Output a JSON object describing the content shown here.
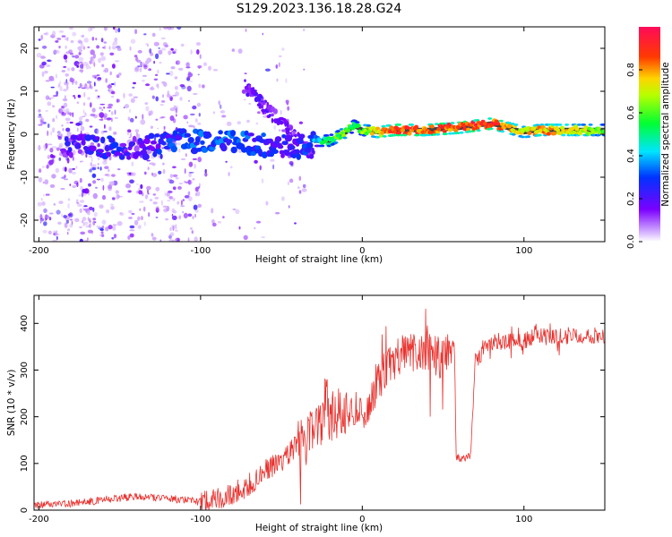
{
  "title": "S129.2023.136.18.28.G24",
  "colors": {
    "snr_line": "#e8322e",
    "frame": "#000000",
    "trace_dark": "#222222"
  },
  "chart_data": [
    {
      "type": "heatmap",
      "xlabel": "Height of straight line (km)",
      "ylabel": "Frequency (Hz)",
      "xlim": [
        -203,
        150
      ],
      "ylim": [
        -25,
        25
      ],
      "x_ticks": [
        -200,
        -100,
        0,
        100
      ],
      "y_ticks": [
        -20,
        -10,
        0,
        10,
        20
      ],
      "x_tick_labels": [
        "-200",
        "-100",
        "0",
        "100"
      ],
      "y_tick_labels": [
        "-20",
        "-10",
        "0",
        "10",
        "20"
      ],
      "colorbar": {
        "label": "Normalized spectral amplitude",
        "range": [
          0,
          1
        ],
        "ticks": [
          0.0,
          0.2,
          0.4,
          0.6,
          0.8
        ],
        "tick_labels": [
          "0.0",
          "0.2",
          "0.4",
          "0.6",
          "0.8"
        ],
        "colormap": "gist_rainbow_r (violet low, red high)"
      },
      "ridge": {
        "x": [
          -180,
          -160,
          -140,
          -120,
          -100,
          -80,
          -60,
          -40,
          -30,
          -20,
          -10,
          -5,
          0,
          10,
          20,
          40,
          60,
          80,
          90,
          100,
          110,
          130,
          150
        ],
        "freq_hz": [
          -2.5,
          -3.0,
          -3.5,
          -1.5,
          -1.5,
          -1.5,
          -2.5,
          -3.0,
          -1.5,
          -1.5,
          0.5,
          2.0,
          1.0,
          0.5,
          1.0,
          1.0,
          1.5,
          2.5,
          1.5,
          0.5,
          1.0,
          1.0,
          1.0
        ],
        "amplitude": [
          0.2,
          0.3,
          0.2,
          0.3,
          0.35,
          0.35,
          0.3,
          0.25,
          0.35,
          0.55,
          0.6,
          0.5,
          0.6,
          0.75,
          0.9,
          0.85,
          0.85,
          0.9,
          0.75,
          0.7,
          0.8,
          0.7,
          0.6
        ]
      }
    },
    {
      "type": "line",
      "xlabel": "Height of straight line (km)",
      "ylabel": "SNR (10 * v/v)",
      "xlim": [
        -203,
        150
      ],
      "ylim": [
        0,
        460
      ],
      "x_ticks": [
        -200,
        -100,
        0,
        100
      ],
      "y_ticks": [
        0,
        100,
        200,
        300,
        400
      ],
      "x_tick_labels": [
        "-200",
        "-100",
        "0",
        "100"
      ],
      "y_tick_labels": [
        "0",
        "100",
        "200",
        "300",
        "400"
      ],
      "series": [
        {
          "x": [
            -203,
            -180,
            -160,
            -140,
            -120,
            -100,
            -90,
            -80,
            -70,
            -60,
            -50,
            -40,
            -35,
            -30,
            -25,
            -22,
            -20,
            -15,
            -10,
            -5,
            0,
            5,
            10,
            15,
            20,
            30,
            40,
            50,
            57,
            58,
            62,
            67,
            70,
            72,
            75,
            80,
            90,
            100,
            105,
            108,
            110,
            120,
            130,
            140,
            150
          ],
          "y": [
            10,
            14,
            22,
            30,
            25,
            18,
            25,
            35,
            55,
            85,
            110,
            140,
            150,
            160,
            180,
            250,
            190,
            210,
            220,
            210,
            200,
            240,
            280,
            300,
            320,
            340,
            340,
            320,
            360,
            115,
            110,
            115,
            330,
            320,
            350,
            360,
            360,
            360,
            370,
            390,
            375,
            370,
            375,
            375,
            375
          ]
        }
      ]
    }
  ]
}
